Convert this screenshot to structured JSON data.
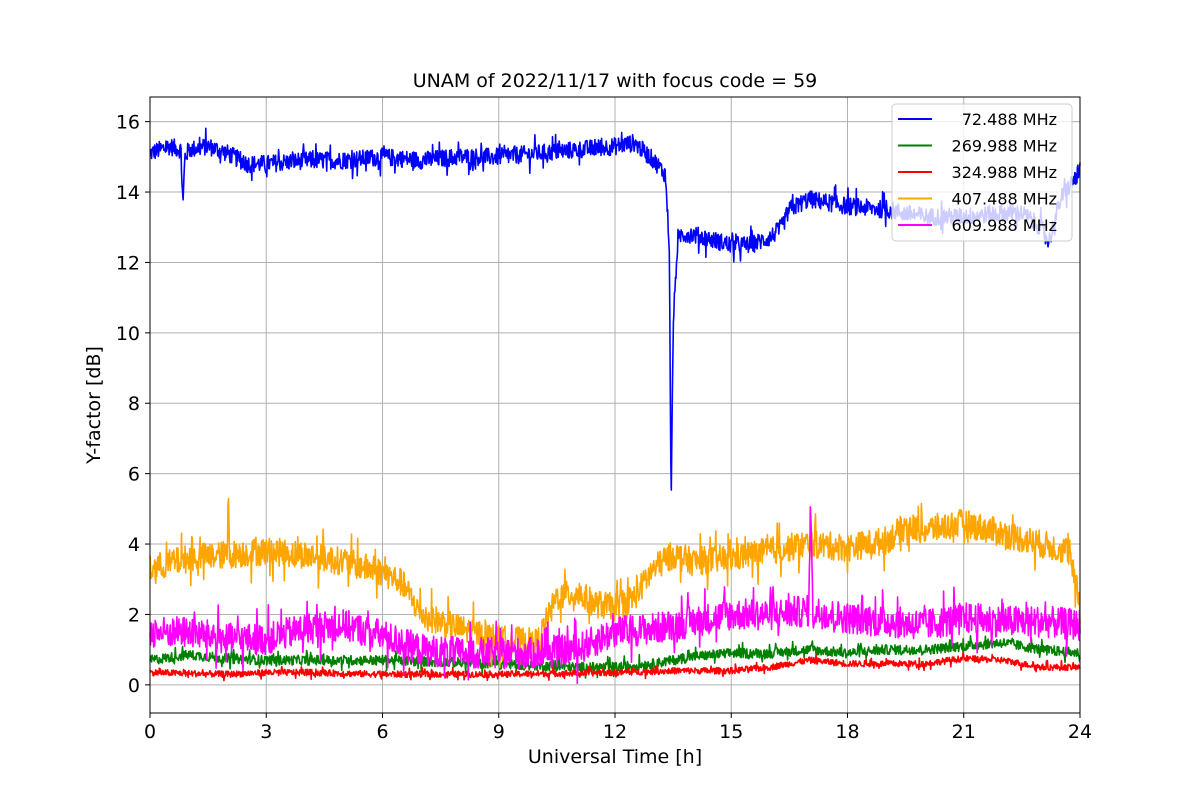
{
  "chart_data": {
    "type": "line",
    "title": "UNAM of 2022/11/17 with focus code = 59",
    "xlabel": "Universal Time [h]",
    "ylabel": "Y-factor [dB]",
    "xlim": [
      0,
      24
    ],
    "ylim": [
      -0.8,
      16.7
    ],
    "xticks": [
      0,
      3,
      6,
      9,
      12,
      15,
      18,
      21,
      24
    ],
    "yticks": [
      0,
      2,
      4,
      6,
      8,
      10,
      12,
      14,
      16
    ],
    "grid": true,
    "legend_position": "top-right",
    "series": [
      {
        "name": "72.488 MHz",
        "color": "#0000ff",
        "noise": 0.25,
        "x": [
          0,
          0.5,
          0.8,
          0.85,
          0.9,
          1.0,
          1.5,
          2.0,
          2.5,
          3.0,
          4.0,
          5.0,
          6.0,
          7.0,
          8.0,
          9.0,
          10.0,
          11.0,
          12.0,
          12.5,
          13.0,
          13.3,
          13.4,
          13.45,
          13.5,
          13.6,
          13.7,
          14.0,
          15.0,
          15.5,
          16.0,
          16.3,
          16.5,
          17.0,
          18.0,
          19.0,
          20.0,
          21.0,
          22.0,
          22.5,
          23.0,
          23.2,
          23.5,
          24.0
        ],
        "y": [
          15.1,
          15.3,
          15.2,
          13.6,
          15.0,
          15.2,
          15.3,
          15.1,
          14.8,
          14.8,
          14.9,
          14.9,
          15.0,
          14.9,
          15.0,
          15.0,
          15.1,
          15.2,
          15.3,
          15.4,
          14.9,
          14.5,
          12.5,
          5.0,
          10.2,
          12.3,
          12.8,
          12.8,
          12.5,
          12.5,
          12.7,
          13.0,
          13.5,
          13.8,
          13.6,
          13.5,
          13.3,
          13.3,
          13.4,
          13.4,
          13.0,
          12.6,
          13.8,
          14.6
        ]
      },
      {
        "name": "269.988 MHz",
        "color": "#008000",
        "noise": 0.14,
        "x": [
          0,
          1,
          2,
          3,
          6,
          9,
          11,
          12,
          13,
          13.5,
          14,
          15,
          16,
          17,
          18,
          19,
          20,
          21,
          22,
          23,
          24
        ],
        "y": [
          0.7,
          0.85,
          0.75,
          0.7,
          0.7,
          0.6,
          0.5,
          0.5,
          0.6,
          0.7,
          0.8,
          0.9,
          0.9,
          1.0,
          0.9,
          1.0,
          1.0,
          1.1,
          1.2,
          1.0,
          0.9
        ]
      },
      {
        "name": "324.988 MHz",
        "color": "#ff0000",
        "noise": 0.09,
        "x": [
          0,
          2,
          3,
          4,
          6,
          9,
          12,
          13.5,
          15,
          16,
          17,
          18,
          19,
          20,
          21,
          22,
          23,
          24
        ],
        "y": [
          0.35,
          0.3,
          0.35,
          0.35,
          0.3,
          0.3,
          0.35,
          0.4,
          0.4,
          0.5,
          0.7,
          0.6,
          0.6,
          0.6,
          0.75,
          0.7,
          0.5,
          0.5
        ]
      },
      {
        "name": "407.488 MHz",
        "color": "#ffa500",
        "noise": 0.4,
        "x": [
          0,
          1,
          2,
          2.02,
          2.05,
          3,
          4,
          5,
          6,
          6.5,
          7,
          8,
          9,
          10,
          10.5,
          11,
          11.5,
          12,
          12.5,
          13,
          13.5,
          14,
          15,
          16,
          17,
          18,
          19,
          19.5,
          20,
          21,
          22,
          23,
          23.7,
          24
        ],
        "y": [
          3.3,
          3.6,
          3.7,
          5.9,
          3.7,
          3.8,
          3.7,
          3.5,
          3.2,
          2.9,
          2.0,
          1.6,
          1.3,
          1.2,
          2.5,
          2.6,
          2.3,
          2.2,
          2.5,
          3.3,
          3.7,
          3.5,
          3.6,
          3.8,
          4.0,
          3.9,
          4.1,
          4.5,
          4.4,
          4.6,
          4.3,
          4.0,
          3.8,
          2.3
        ]
      },
      {
        "name": "609.988 MHz",
        "color": "#ff00ff",
        "noise": 0.45,
        "x": [
          0,
          1,
          2,
          3,
          4,
          5,
          6,
          7,
          8,
          9,
          10,
          11,
          12,
          13,
          13.5,
          14,
          15,
          16,
          17,
          17.05,
          17.1,
          18,
          19,
          20,
          21,
          22,
          23,
          24
        ],
        "y": [
          1.5,
          1.5,
          1.3,
          1.3,
          1.6,
          1.7,
          1.4,
          1.0,
          0.9,
          0.9,
          0.9,
          1.0,
          1.5,
          1.6,
          1.7,
          1.8,
          2.0,
          2.0,
          2.1,
          5.4,
          2.1,
          1.9,
          1.8,
          1.7,
          1.9,
          1.8,
          1.8,
          1.7
        ]
      }
    ]
  }
}
